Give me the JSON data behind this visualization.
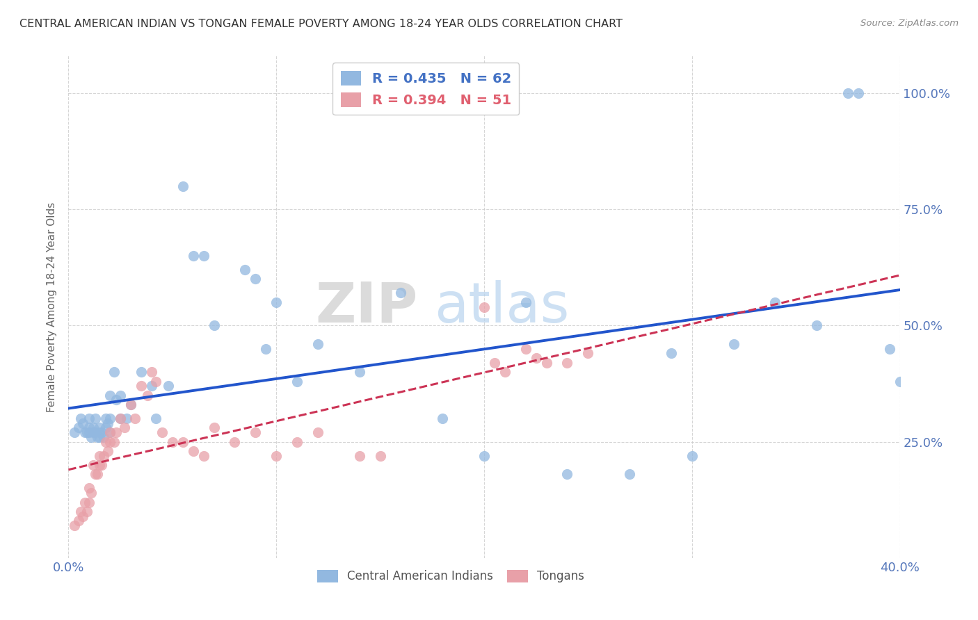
{
  "title": "CENTRAL AMERICAN INDIAN VS TONGAN FEMALE POVERTY AMONG 18-24 YEAR OLDS CORRELATION CHART",
  "source": "Source: ZipAtlas.com",
  "ylabel": "Female Poverty Among 18-24 Year Olds",
  "xlim": [
    0.0,
    0.4
  ],
  "ylim": [
    0.0,
    1.08
  ],
  "blue_color": "#92b8e0",
  "pink_color": "#e8a0a8",
  "blue_line_color": "#2255cc",
  "pink_line_color": "#cc3355",
  "watermark_zip": "ZIP",
  "watermark_atlas": "atlas",
  "legend_label1": "R = 0.435   N = 62",
  "legend_label2": "R = 0.394   N = 51",
  "legend_color1": "#4472c4",
  "legend_color2": "#e06070",
  "blue_x": [
    0.003,
    0.005,
    0.006,
    0.007,
    0.008,
    0.009,
    0.01,
    0.01,
    0.01,
    0.011,
    0.012,
    0.012,
    0.013,
    0.013,
    0.014,
    0.015,
    0.015,
    0.015,
    0.016,
    0.017,
    0.018,
    0.018,
    0.019,
    0.02,
    0.02,
    0.02,
    0.022,
    0.023,
    0.025,
    0.025,
    0.028,
    0.03,
    0.035,
    0.04,
    0.042,
    0.048,
    0.055,
    0.06,
    0.065,
    0.07,
    0.085,
    0.09,
    0.095,
    0.1,
    0.11,
    0.12,
    0.14,
    0.16,
    0.18,
    0.2,
    0.22,
    0.24,
    0.27,
    0.29,
    0.3,
    0.32,
    0.34,
    0.36,
    0.375,
    0.38,
    0.395,
    0.4
  ],
  "blue_y": [
    0.27,
    0.28,
    0.3,
    0.29,
    0.27,
    0.27,
    0.3,
    0.28,
    0.27,
    0.26,
    0.28,
    0.27,
    0.3,
    0.27,
    0.26,
    0.28,
    0.27,
    0.26,
    0.27,
    0.26,
    0.3,
    0.28,
    0.29,
    0.35,
    0.3,
    0.27,
    0.4,
    0.34,
    0.35,
    0.3,
    0.3,
    0.33,
    0.4,
    0.37,
    0.3,
    0.37,
    0.8,
    0.65,
    0.65,
    0.5,
    0.62,
    0.6,
    0.45,
    0.55,
    0.38,
    0.46,
    0.4,
    0.57,
    0.3,
    0.22,
    0.55,
    0.18,
    0.18,
    0.44,
    0.22,
    0.46,
    0.55,
    0.5,
    1.0,
    1.0,
    0.45,
    0.38
  ],
  "pink_x": [
    0.003,
    0.005,
    0.006,
    0.007,
    0.008,
    0.009,
    0.01,
    0.01,
    0.011,
    0.012,
    0.013,
    0.014,
    0.015,
    0.015,
    0.016,
    0.017,
    0.018,
    0.019,
    0.02,
    0.02,
    0.022,
    0.023,
    0.025,
    0.027,
    0.03,
    0.032,
    0.035,
    0.038,
    0.04,
    0.042,
    0.045,
    0.05,
    0.055,
    0.06,
    0.065,
    0.07,
    0.08,
    0.09,
    0.1,
    0.11,
    0.12,
    0.14,
    0.15,
    0.2,
    0.205,
    0.21,
    0.22,
    0.225,
    0.23,
    0.24,
    0.25
  ],
  "pink_y": [
    0.07,
    0.08,
    0.1,
    0.09,
    0.12,
    0.1,
    0.15,
    0.12,
    0.14,
    0.2,
    0.18,
    0.18,
    0.22,
    0.2,
    0.2,
    0.22,
    0.25,
    0.23,
    0.27,
    0.25,
    0.25,
    0.27,
    0.3,
    0.28,
    0.33,
    0.3,
    0.37,
    0.35,
    0.4,
    0.38,
    0.27,
    0.25,
    0.25,
    0.23,
    0.22,
    0.28,
    0.25,
    0.27,
    0.22,
    0.25,
    0.27,
    0.22,
    0.22,
    0.54,
    0.42,
    0.4,
    0.45,
    0.43,
    0.42,
    0.42,
    0.44
  ]
}
